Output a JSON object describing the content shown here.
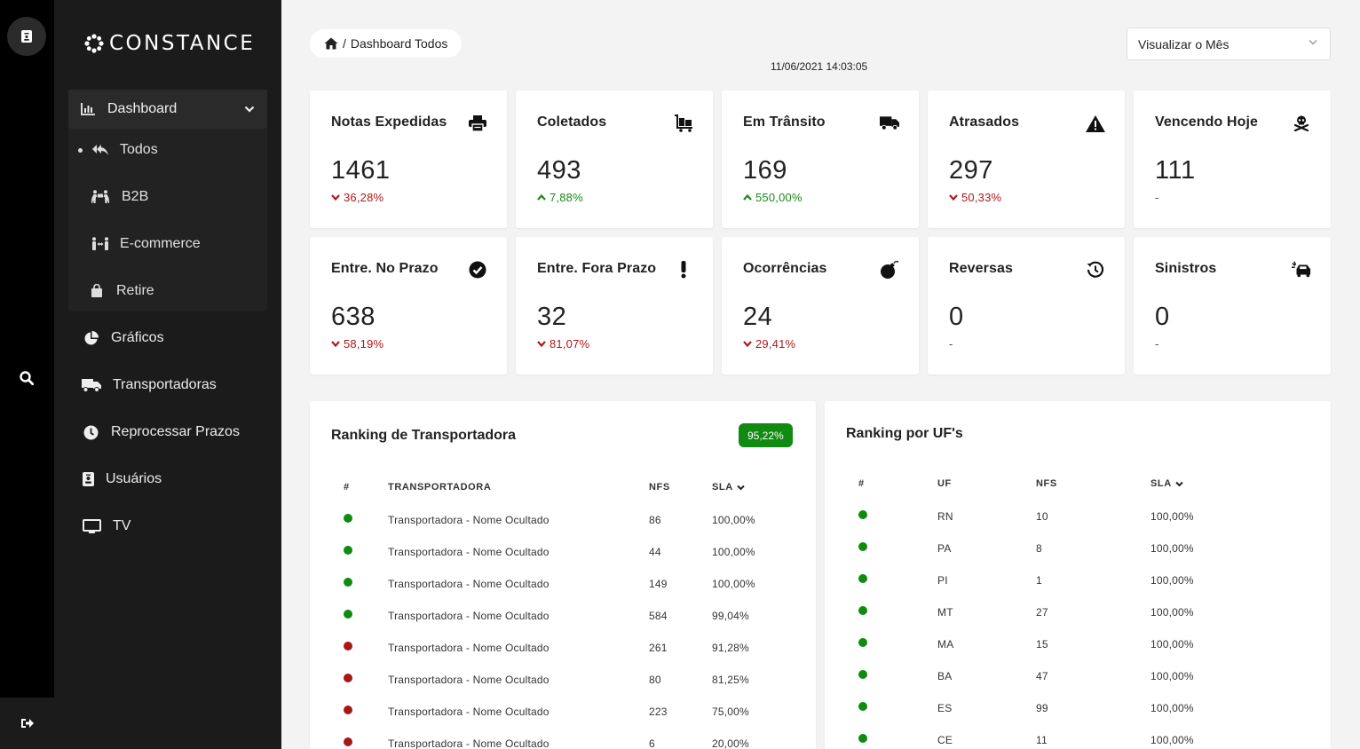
{
  "brand": {
    "name": "CONSTANCE"
  },
  "sidebar": {
    "dashboard": {
      "label": "Dashboard",
      "items": [
        "Todos",
        "B2B",
        "E-commerce",
        "Retire"
      ],
      "active": "Todos"
    },
    "nav": [
      "Gráficos",
      "Transportadoras",
      "Reprocessar Prazos",
      "Usuários",
      "TV"
    ]
  },
  "header": {
    "breadcrumb_sep": "/",
    "breadcrumb": "Dashboard Todos",
    "timestamp": "11/06/2021 14:03:05",
    "period_select": "Visualizar o Mês"
  },
  "cards": [
    {
      "title": "Notas Expedidas",
      "value": "1461",
      "delta": "36,28%",
      "trend": "down",
      "icon": "printer-icon"
    },
    {
      "title": "Coletados",
      "value": "493",
      "delta": "7,88%",
      "trend": "up",
      "icon": "luggage-cart-icon"
    },
    {
      "title": "Em Trânsito",
      "value": "169",
      "delta": "550,00%",
      "trend": "up",
      "icon": "truck-icon"
    },
    {
      "title": "Atrasados",
      "value": "297",
      "delta": "50,33%",
      "trend": "down",
      "icon": "warning-icon"
    },
    {
      "title": "Vencendo Hoje",
      "value": "111",
      "delta": "-",
      "trend": "none",
      "icon": "skull-crossbones-icon"
    },
    {
      "title": "Entre. No Prazo",
      "value": "638",
      "delta": "58,19%",
      "trend": "down",
      "icon": "check-circle-icon"
    },
    {
      "title": "Entre. Fora Prazo",
      "value": "32",
      "delta": "81,07%",
      "trend": "down",
      "icon": "exclamation-icon"
    },
    {
      "title": "Ocorrências",
      "value": "24",
      "delta": "29,41%",
      "trend": "down",
      "icon": "bomb-icon"
    },
    {
      "title": "Reversas",
      "value": "0",
      "delta": "-",
      "trend": "none",
      "icon": "history-icon"
    },
    {
      "title": "Sinistros",
      "value": "0",
      "delta": "-",
      "trend": "none",
      "icon": "car-crash-icon"
    }
  ],
  "ranking_transportadora": {
    "title": "Ranking de Transportadora",
    "badge": "95,22%",
    "headers": [
      "#",
      "TRANSPORTADORA",
      "NFS",
      "SLA"
    ],
    "rows": [
      {
        "status": "green",
        "name": "Transportadora - Nome Ocultado",
        "nfs": "86",
        "sla": "100,00%"
      },
      {
        "status": "green",
        "name": "Transportadora - Nome Ocultado",
        "nfs": "44",
        "sla": "100,00%"
      },
      {
        "status": "green",
        "name": "Transportadora - Nome Ocultado",
        "nfs": "149",
        "sla": "100,00%"
      },
      {
        "status": "green",
        "name": "Transportadora - Nome Ocultado",
        "nfs": "584",
        "sla": "99,04%"
      },
      {
        "status": "red",
        "name": "Transportadora - Nome Ocultado",
        "nfs": "261",
        "sla": "91,28%"
      },
      {
        "status": "red",
        "name": "Transportadora - Nome Ocultado",
        "nfs": "80",
        "sla": "81,25%"
      },
      {
        "status": "red",
        "name": "Transportadora - Nome Ocultado",
        "nfs": "223",
        "sla": "75,00%"
      },
      {
        "status": "red",
        "name": "Transportadora - Nome Ocultado",
        "nfs": "6",
        "sla": "20,00%"
      }
    ]
  },
  "ranking_uf": {
    "title": "Ranking por UF's",
    "headers": [
      "#",
      "UF",
      "NFS",
      "SLA"
    ],
    "rows": [
      {
        "status": "green",
        "uf": "RN",
        "nfs": "10",
        "sla": "100,00%"
      },
      {
        "status": "green",
        "uf": "PA",
        "nfs": "8",
        "sla": "100,00%"
      },
      {
        "status": "green",
        "uf": "PI",
        "nfs": "1",
        "sla": "100,00%"
      },
      {
        "status": "green",
        "uf": "MT",
        "nfs": "27",
        "sla": "100,00%"
      },
      {
        "status": "green",
        "uf": "MA",
        "nfs": "15",
        "sla": "100,00%"
      },
      {
        "status": "green",
        "uf": "BA",
        "nfs": "47",
        "sla": "100,00%"
      },
      {
        "status": "green",
        "uf": "ES",
        "nfs": "99",
        "sla": "100,00%"
      },
      {
        "status": "green",
        "uf": "CE",
        "nfs": "11",
        "sla": "100,00%"
      }
    ]
  },
  "colors": {
    "green": "#108a10",
    "red": "#a61818",
    "sidebar": "#1b1b1b",
    "rail": "#000000"
  }
}
